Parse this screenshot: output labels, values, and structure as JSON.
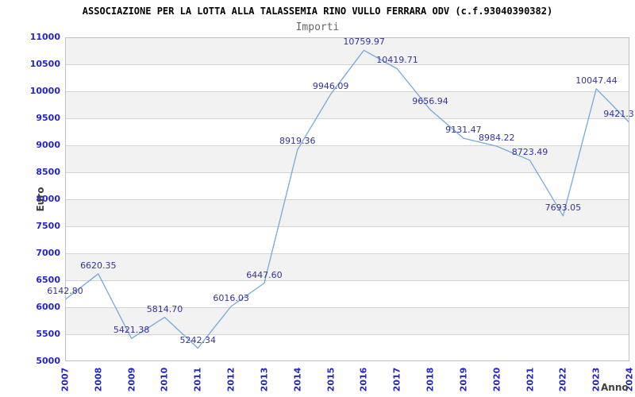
{
  "chart_data": {
    "type": "line",
    "title": "ASSOCIAZIONE PER LA LOTTA ALLA TALASSEMIA RINO VULLO FERRARA ODV (c.f.93040390382)",
    "subtitle": "Importi",
    "xlabel": "Anno",
    "ylabel": "Euro",
    "categories": [
      "2007",
      "2008",
      "2009",
      "2010",
      "2011",
      "2012",
      "2013",
      "2014",
      "2015",
      "2016",
      "2017",
      "2018",
      "2019",
      "2020",
      "2021",
      "2022",
      "2023",
      "2024"
    ],
    "values": [
      6142.8,
      6620.35,
      5421.38,
      5814.7,
      5242.34,
      6016.03,
      6447.6,
      8919.36,
      9946.09,
      10759.97,
      10419.71,
      9656.94,
      9131.47,
      8984.22,
      8723.49,
      7693.05,
      10047.44,
      9421.3
    ],
    "point_labels": [
      "6142.80",
      "6620.35",
      "5421.38",
      "5814.70",
      "5242.34",
      "6016.03",
      "6447.60",
      "8919.36",
      "9946.09",
      "10759.97",
      "10419.71",
      "9656.94",
      "9131.47",
      "8984.22",
      "8723.49",
      "7693.05",
      "10047.44",
      "9421.3"
    ],
    "ylim": [
      5000,
      11000
    ],
    "ytick_step": 500,
    "grid": true,
    "legend": "none",
    "colors": {
      "line": "#74a9e0",
      "axis_text": "#2424cc",
      "point_label": "#3333a0",
      "band": "#f2f2f2",
      "gridline": "#d4d4d4",
      "plot_border": "#c0c0c0",
      "title": "#000000",
      "subtitle": "#666666",
      "axis_title": "#404040"
    }
  }
}
